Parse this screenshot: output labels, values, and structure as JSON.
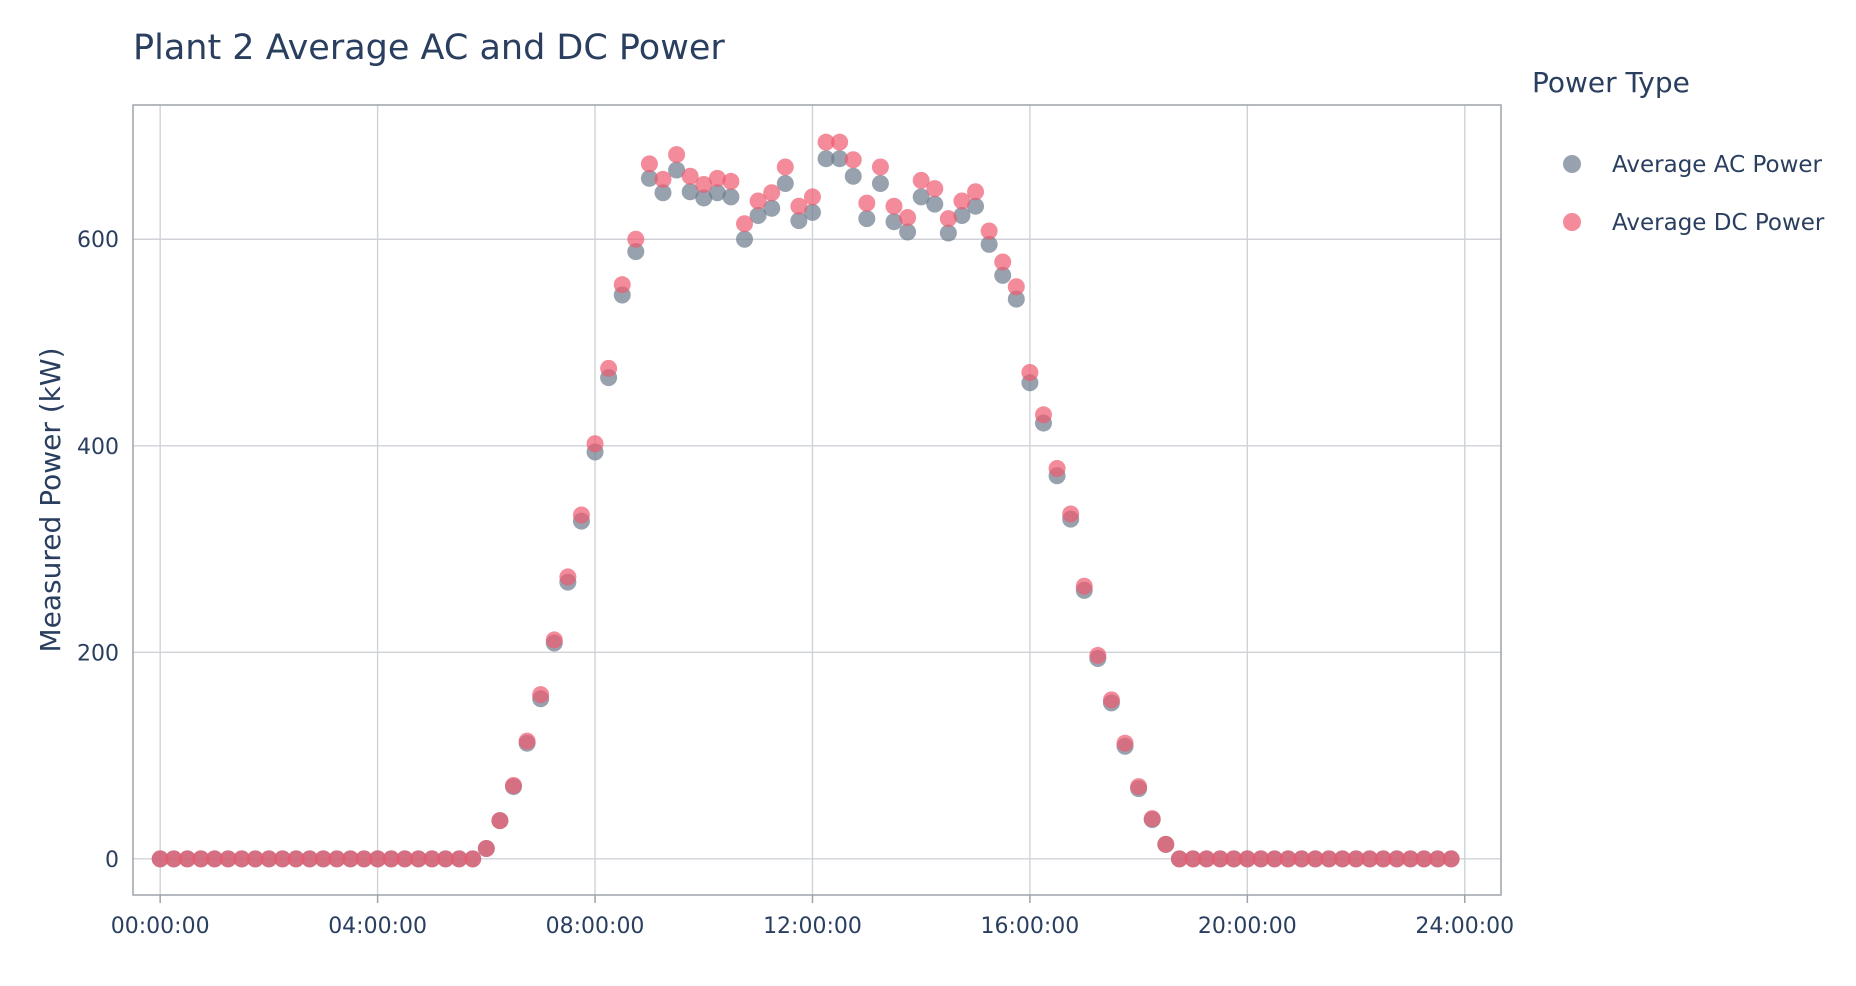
{
  "chart_data": {
    "type": "scatter",
    "title": "Plant 2 Average AC and DC Power",
    "xlabel": "",
    "ylabel": "Measured Power (kW)",
    "x_tick_labels": [
      "00:00:00",
      "04:00:00",
      "08:00:00",
      "12:00:00",
      "16:00:00",
      "20:00:00",
      "24:00:00"
    ],
    "y_tick_labels": [
      "0",
      "200",
      "400",
      "600"
    ],
    "xlim": [
      "-00:30:00",
      "24:40:00"
    ],
    "ylim": [
      -35,
      730
    ],
    "grid": true,
    "legend": {
      "title": "Power Type",
      "placement": "right"
    },
    "x": [
      "00:00:00",
      "00:15:00",
      "00:30:00",
      "00:45:00",
      "01:00:00",
      "01:15:00",
      "01:30:00",
      "01:45:00",
      "02:00:00",
      "02:15:00",
      "02:30:00",
      "02:45:00",
      "03:00:00",
      "03:15:00",
      "03:30:00",
      "03:45:00",
      "04:00:00",
      "04:15:00",
      "04:30:00",
      "04:45:00",
      "05:00:00",
      "05:15:00",
      "05:30:00",
      "05:45:00",
      "06:00:00",
      "06:15:00",
      "06:30:00",
      "06:45:00",
      "07:00:00",
      "07:15:00",
      "07:30:00",
      "07:45:00",
      "08:00:00",
      "08:15:00",
      "08:30:00",
      "08:45:00",
      "09:00:00",
      "09:15:00",
      "09:30:00",
      "09:45:00",
      "10:00:00",
      "10:15:00",
      "10:30:00",
      "10:45:00",
      "11:00:00",
      "11:15:00",
      "11:30:00",
      "11:45:00",
      "12:00:00",
      "12:15:00",
      "12:30:00",
      "12:45:00",
      "13:00:00",
      "13:15:00",
      "13:30:00",
      "13:45:00",
      "14:00:00",
      "14:15:00",
      "14:30:00",
      "14:45:00",
      "15:00:00",
      "15:15:00",
      "15:30:00",
      "15:45:00",
      "16:00:00",
      "16:15:00",
      "16:30:00",
      "16:45:00",
      "17:00:00",
      "17:15:00",
      "17:30:00",
      "17:45:00",
      "18:00:00",
      "18:15:00",
      "18:30:00",
      "18:45:00",
      "19:00:00",
      "19:15:00",
      "19:30:00",
      "19:45:00",
      "20:00:00",
      "20:15:00",
      "20:30:00",
      "20:45:00",
      "21:00:00",
      "21:15:00",
      "21:30:00",
      "21:45:00",
      "22:00:00",
      "22:15:00",
      "22:30:00",
      "22:45:00",
      "23:00:00",
      "23:15:00",
      "23:30:00",
      "23:45:00"
    ],
    "series": [
      {
        "name": "Average AC Power",
        "color": "#6c7a8b",
        "values": [
          0,
          0,
          0,
          0,
          0,
          0,
          0,
          0,
          0,
          0,
          0,
          0,
          0,
          0,
          0,
          0,
          0,
          0,
          0,
          0,
          0,
          0,
          0,
          0,
          10,
          37,
          70,
          112,
          155,
          209,
          268,
          327,
          394,
          466,
          546,
          588,
          659,
          645,
          667,
          646,
          640,
          645,
          641,
          600,
          623,
          630,
          654,
          618,
          626,
          678,
          678,
          661,
          620,
          654,
          617,
          607,
          641,
          634,
          606,
          623,
          632,
          595,
          565,
          542,
          461,
          422,
          371,
          329,
          260,
          194,
          151,
          109,
          68,
          38,
          14,
          0,
          0,
          0,
          0,
          0,
          0,
          0,
          0,
          0,
          0,
          0,
          0,
          0,
          0,
          0,
          0,
          0,
          0,
          0,
          0,
          0
        ]
      },
      {
        "name": "Average DC Power",
        "color": "#ef5a6f",
        "values": [
          0,
          0,
          0,
          0,
          0,
          0,
          0,
          0,
          0,
          0,
          0,
          0,
          0,
          0,
          0,
          0,
          0,
          0,
          0,
          0,
          0,
          0,
          0,
          0,
          10,
          37,
          71,
          114,
          159,
          212,
          273,
          333,
          402,
          475,
          556,
          600,
          673,
          658,
          682,
          661,
          653,
          659,
          656,
          615,
          637,
          645,
          670,
          632,
          641,
          694,
          694,
          677,
          635,
          670,
          632,
          621,
          657,
          649,
          620,
          637,
          646,
          608,
          578,
          554,
          471,
          430,
          378,
          334,
          264,
          197,
          154,
          112,
          70,
          39,
          14,
          0,
          0,
          0,
          0,
          0,
          0,
          0,
          0,
          0,
          0,
          0,
          0,
          0,
          0,
          0,
          0,
          0,
          0,
          0,
          0,
          0
        ]
      }
    ]
  }
}
